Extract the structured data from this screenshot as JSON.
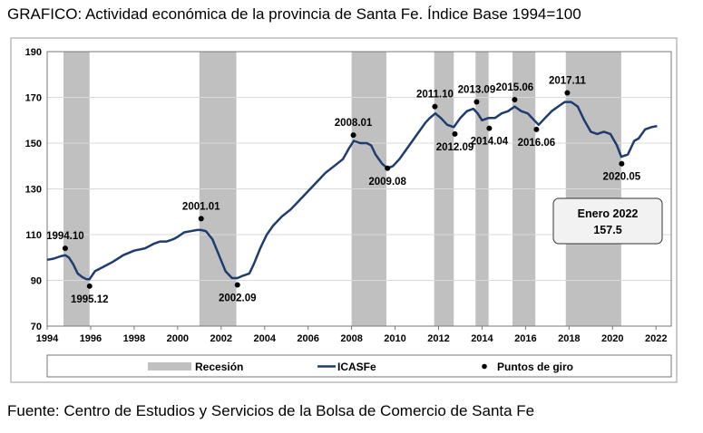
{
  "title": "GRAFICO: Actividad económica de la provincia de Santa Fe. Índice Base 1994=100",
  "source": "Fuente: Centro de Estudios y Servicios de la Bolsa de Comercio de Santa Fe",
  "chart_data": {
    "type": "line",
    "xlim": [
      1994,
      2022.7
    ],
    "ylim": [
      70,
      190
    ],
    "x_ticks": [
      "1994",
      "1996",
      "1998",
      "2000",
      "2002",
      "2004",
      "2006",
      "2008",
      "2010",
      "2012",
      "2014",
      "2016",
      "2018",
      "2020",
      "2022"
    ],
    "y_ticks": [
      "70",
      "90",
      "110",
      "130",
      "150",
      "170",
      "190"
    ],
    "grid": true,
    "colors": {
      "line": "#1f3c6e",
      "recession": "#c0c0c0",
      "point": "#000000"
    },
    "recessions": [
      [
        1994.75,
        1995.95
      ],
      [
        2001.0,
        2002.7
      ],
      [
        2008.0,
        2009.6
      ],
      [
        2011.8,
        2012.7
      ],
      [
        2013.7,
        2014.3
      ],
      [
        2015.4,
        2016.45
      ],
      [
        2017.85,
        2020.4
      ]
    ],
    "series": [
      {
        "name": "ICASFe",
        "x": [
          1994.0,
          1994.3,
          1994.6,
          1994.83,
          1995.0,
          1995.2,
          1995.4,
          1995.6,
          1995.8,
          1995.95,
          1996.2,
          1996.6,
          1997.0,
          1997.5,
          1998.0,
          1998.5,
          1998.9,
          1999.2,
          1999.5,
          1999.8,
          2000.0,
          2000.3,
          2000.6,
          2000.9,
          2001.08,
          2001.3,
          2001.6,
          2001.9,
          2002.2,
          2002.5,
          2002.75,
          2003.0,
          2003.3,
          2003.5,
          2003.8,
          2004.1,
          2004.4,
          2004.8,
          2005.2,
          2005.6,
          2006.0,
          2006.4,
          2006.8,
          2007.2,
          2007.6,
          2007.9,
          2008.1,
          2008.4,
          2008.7,
          2008.9,
          2009.1,
          2009.4,
          2009.65,
          2009.9,
          2010.2,
          2010.5,
          2010.8,
          2011.1,
          2011.4,
          2011.6,
          2011.85,
          2012.1,
          2012.4,
          2012.7,
          2013.0,
          2013.3,
          2013.6,
          2013.8,
          2014.0,
          2014.3,
          2014.6,
          2014.9,
          2015.2,
          2015.5,
          2015.8,
          2016.1,
          2016.4,
          2016.6,
          2016.9,
          2017.2,
          2017.5,
          2017.8,
          2018.1,
          2018.4,
          2018.7,
          2019.0,
          2019.3,
          2019.6,
          2019.9,
          2020.2,
          2020.4,
          2020.7,
          2021.0,
          2021.2,
          2021.5,
          2021.8,
          2022.05
        ],
        "values": [
          99,
          99.5,
          100.5,
          101,
          100,
          97,
          93,
          91.5,
          90.5,
          90.5,
          94,
          96,
          98,
          101,
          103,
          104,
          106,
          107,
          107,
          108,
          109,
          111,
          111.5,
          112,
          112,
          111.5,
          108,
          101,
          94,
          91,
          91,
          92,
          93,
          97,
          104,
          110,
          114,
          118,
          121,
          125,
          129,
          133,
          137,
          140,
          143,
          148,
          151,
          150,
          150,
          149,
          145,
          141,
          139,
          140,
          143,
          147,
          151,
          155,
          159,
          161,
          163,
          161,
          158,
          157,
          161,
          164,
          165,
          163,
          160,
          161,
          161,
          163,
          164,
          166,
          164,
          163,
          160,
          158,
          161,
          164,
          166,
          168,
          168,
          166,
          160,
          155,
          154,
          155,
          154,
          149,
          144,
          145,
          151,
          152,
          156,
          157,
          157.5
        ]
      },
      {
        "name": "Puntos de giro",
        "x": [
          1994.83,
          1995.95,
          2001.08,
          2002.75,
          2008.08,
          2009.65,
          2011.83,
          2012.75,
          2013.75,
          2014.33,
          2015.5,
          2016.5,
          2017.92,
          2020.42
        ],
        "values": [
          104,
          87.5,
          117,
          88,
          153.5,
          139,
          166,
          154,
          168,
          156.5,
          169,
          156,
          172,
          141
        ],
        "labels": [
          "1994.10",
          "1995.12",
          "2001.01",
          "2002.09",
          "2008.01",
          "2009.08",
          "2011.10",
          "2012.09",
          "2013.09",
          "2014.04",
          "2015.06",
          "2016.06",
          "2017.11",
          "2020.05"
        ],
        "label_pos": [
          "above",
          "below",
          "above",
          "below",
          "above",
          "below",
          "above",
          "below",
          "above",
          "below",
          "above",
          "below",
          "above",
          "below"
        ]
      }
    ],
    "legend": [
      "Recesión",
      "ICASFe",
      "Puntos de giro"
    ],
    "annotation": {
      "line1": "Enero 2022",
      "line2": "157.5"
    }
  }
}
